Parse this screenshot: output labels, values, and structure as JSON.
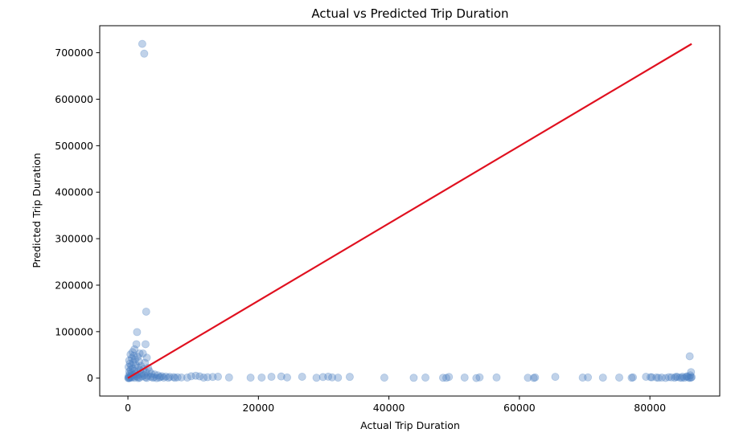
{
  "chart_data": {
    "type": "scatter",
    "title": "Actual vs Predicted Trip Duration",
    "xlabel": "Actual Trip Duration",
    "ylabel": "Predicted Trip Duration",
    "xlim": [
      -4321,
      90703
    ],
    "ylim": [
      -38500,
      758100
    ],
    "xticks": [
      0,
      20000,
      40000,
      60000,
      80000
    ],
    "xtick_labels": [
      "0",
      "20000",
      "40000",
      "60000",
      "80000"
    ],
    "yticks": [
      0,
      100000,
      200000,
      300000,
      400000,
      500000,
      600000,
      700000
    ],
    "ytick_labels": [
      "0",
      "100000",
      "200000",
      "300000",
      "400000",
      "500000",
      "600000",
      "700000"
    ],
    "grid": false,
    "colors": {
      "points": "#4a7fc1",
      "line": "#e0101f"
    },
    "points_alpha": 0.35,
    "reference_line": {
      "x": [
        0,
        86400
      ],
      "y": [
        0,
        719000
      ]
    },
    "points": [
      [
        2200,
        719000
      ],
      [
        2500,
        698000
      ],
      [
        2800,
        143000
      ],
      [
        1400,
        99000
      ],
      [
        2700,
        73000
      ],
      [
        1300,
        73000
      ],
      [
        1000,
        62000
      ],
      [
        700,
        56000
      ],
      [
        1800,
        53000
      ],
      [
        2300,
        53000
      ],
      [
        400,
        51000
      ],
      [
        900,
        48000
      ],
      [
        1500,
        46000
      ],
      [
        2900,
        44000
      ],
      [
        600,
        43000
      ],
      [
        1100,
        40000
      ],
      [
        200,
        38000
      ],
      [
        1700,
        36000
      ],
      [
        800,
        34000
      ],
      [
        2600,
        33000
      ],
      [
        300,
        31000
      ],
      [
        1200,
        29000
      ],
      [
        500,
        27000
      ],
      [
        2000,
        26000
      ],
      [
        100,
        24000
      ],
      [
        1600,
        23000
      ],
      [
        3100,
        22000
      ],
      [
        700,
        21000
      ],
      [
        2400,
        19000
      ],
      [
        400,
        18000
      ],
      [
        1900,
        17000
      ],
      [
        1000,
        16000
      ],
      [
        3300,
        15000
      ],
      [
        200,
        14000
      ],
      [
        1400,
        13000
      ],
      [
        2800,
        12000
      ],
      [
        600,
        11000
      ],
      [
        2100,
        10000
      ],
      [
        3600,
        9500
      ],
      [
        300,
        9000
      ],
      [
        1100,
        8500
      ],
      [
        4100,
        8000
      ],
      [
        1700,
        7500
      ],
      [
        800,
        7000
      ],
      [
        2500,
        6500
      ],
      [
        4600,
        6000
      ],
      [
        500,
        5500
      ],
      [
        3000,
        5000
      ],
      [
        1300,
        4500
      ],
      [
        5200,
        4200
      ],
      [
        100,
        4000
      ],
      [
        2200,
        3800
      ],
      [
        5800,
        3500
      ],
      [
        900,
        3200
      ],
      [
        3500,
        3000
      ],
      [
        6400,
        2800
      ],
      [
        1500,
        2600
      ],
      [
        7000,
        2400
      ],
      [
        400,
        2200
      ],
      [
        4000,
        2000
      ],
      [
        7600,
        1800
      ],
      [
        2700,
        1600
      ],
      [
        8200,
        1500
      ],
      [
        600,
        1400
      ],
      [
        4800,
        1300
      ],
      [
        9100,
        1200
      ],
      [
        1800,
        1100
      ],
      [
        5500,
        1000
      ],
      [
        200,
        900
      ],
      [
        3800,
        800
      ],
      [
        6200,
        700
      ],
      [
        1000,
        600
      ],
      [
        7200,
        500
      ],
      [
        2900,
        400
      ],
      [
        100,
        300
      ],
      [
        300,
        200
      ],
      [
        1600,
        100
      ],
      [
        4400,
        50
      ],
      [
        50,
        0
      ],
      [
        5000,
        2500
      ],
      [
        9700,
        4000
      ],
      [
        10400,
        5200
      ],
      [
        11000,
        3800
      ],
      [
        11600,
        1200
      ],
      [
        12200,
        2000
      ],
      [
        13000,
        2600
      ],
      [
        13800,
        3100
      ],
      [
        15500,
        1400
      ],
      [
        18800,
        1000
      ],
      [
        20500,
        1300
      ],
      [
        22000,
        2900
      ],
      [
        23500,
        3600
      ],
      [
        24400,
        1500
      ],
      [
        26700,
        3000
      ],
      [
        28900,
        900
      ],
      [
        29900,
        2300
      ],
      [
        30700,
        3200
      ],
      [
        31300,
        1700
      ],
      [
        32200,
        1100
      ],
      [
        34000,
        2700
      ],
      [
        39300,
        1000
      ],
      [
        43800,
        700
      ],
      [
        45600,
        1200
      ],
      [
        48300,
        900
      ],
      [
        48800,
        500
      ],
      [
        49200,
        2600
      ],
      [
        51600,
        1300
      ],
      [
        53400,
        200
      ],
      [
        53900,
        1700
      ],
      [
        56500,
        1400
      ],
      [
        61300,
        800
      ],
      [
        62200,
        400
      ],
      [
        62400,
        1500
      ],
      [
        65500,
        2800
      ],
      [
        69700,
        1200
      ],
      [
        70500,
        1600
      ],
      [
        72800,
        1100
      ],
      [
        75300,
        1300
      ],
      [
        77200,
        900
      ],
      [
        77400,
        1700
      ],
      [
        79400,
        2900
      ],
      [
        80100,
        2100
      ],
      [
        80300,
        1800
      ],
      [
        81000,
        1500
      ],
      [
        81300,
        700
      ],
      [
        81800,
        1200
      ],
      [
        82400,
        400
      ],
      [
        82900,
        2100
      ],
      [
        83300,
        1600
      ],
      [
        83800,
        900
      ],
      [
        84200,
        2500
      ],
      [
        84600,
        1100
      ],
      [
        85000,
        3200
      ],
      [
        85300,
        700
      ],
      [
        85600,
        2900
      ],
      [
        85900,
        1600
      ],
      [
        86100,
        400
      ],
      [
        86300,
        1200
      ],
      [
        86400,
        2200
      ],
      [
        86200,
        6000
      ],
      [
        86300,
        13000
      ],
      [
        86100,
        47000
      ],
      [
        85700,
        3800
      ],
      [
        84900,
        600
      ],
      [
        84000,
        3000
      ]
    ]
  }
}
